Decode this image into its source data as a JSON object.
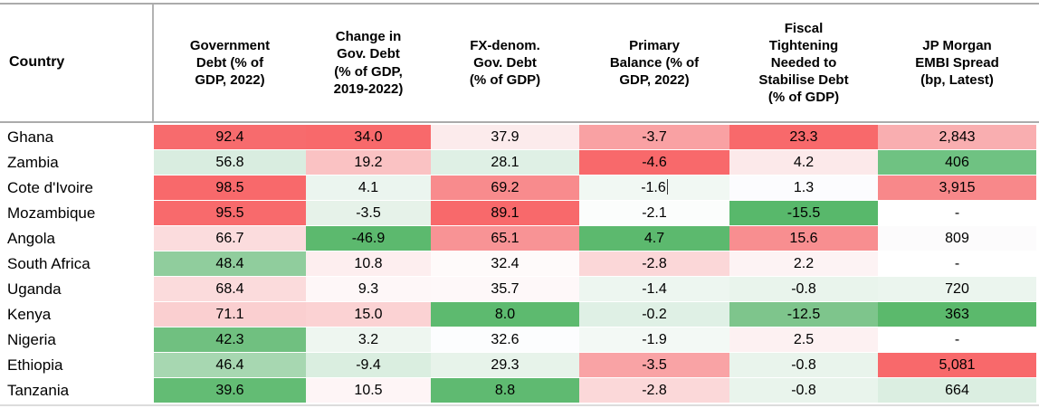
{
  "table": {
    "country_header": "Country",
    "columns": [
      "Government\nDebt (% of\nGDP, 2022)",
      "Change in\nGov. Debt\n(% of GDP,\n2019-2022)",
      "FX-denom.\nGov. Debt\n(% of GDP)",
      "Primary\nBalance (% of\nGDP, 2022)",
      "Fiscal\nTightening\nNeeded to\nStabilise Debt\n(% of GDP)",
      "JP Morgan\nEMBI Spread\n(bp, Latest)"
    ],
    "rows": [
      {
        "country": "Ghana",
        "cells": [
          {
            "v": "92.4",
            "bg": "#F76B6D"
          },
          {
            "v": "34.0",
            "bg": "#F8696B"
          },
          {
            "v": "37.9",
            "bg": "#FCEBEC"
          },
          {
            "v": "-3.7",
            "bg": "#F9A1A3"
          },
          {
            "v": "23.3",
            "bg": "#F8696B"
          },
          {
            "v": "2,843",
            "bg": "#F9AEB0"
          }
        ]
      },
      {
        "country": "Zambia",
        "cells": [
          {
            "v": "56.8",
            "bg": "#D9EDE0"
          },
          {
            "v": "19.2",
            "bg": "#FAC2C3"
          },
          {
            "v": "28.1",
            "bg": "#DFF0E5"
          },
          {
            "v": "-4.6",
            "bg": "#F8696B"
          },
          {
            "v": "4.2",
            "bg": "#FCE9EA"
          },
          {
            "v": "406",
            "bg": "#6FC282"
          }
        ]
      },
      {
        "country": "Cote d'Ivoire",
        "cells": [
          {
            "v": "98.5",
            "bg": "#F8696B"
          },
          {
            "v": "4.1",
            "bg": "#EBF5EF"
          },
          {
            "v": "69.2",
            "bg": "#F88B8D"
          },
          {
            "v": "-1.6",
            "bg": "#F1F8F3",
            "cursor": true
          },
          {
            "v": "1.3",
            "bg": "#FCFCFE"
          },
          {
            "v": "3,915",
            "bg": "#F8888A"
          }
        ]
      },
      {
        "country": "Mozambique",
        "cells": [
          {
            "v": "95.5",
            "bg": "#F86A6C"
          },
          {
            "v": "-3.5",
            "bg": "#E6F2E9"
          },
          {
            "v": "89.1",
            "bg": "#F8696B"
          },
          {
            "v": "-2.1",
            "bg": "#FBFDFC"
          },
          {
            "v": "-15.5",
            "bg": "#58B86B"
          },
          {
            "v": "-",
            "bg": "#FFFFFF"
          }
        ]
      },
      {
        "country": "Angola",
        "cells": [
          {
            "v": "66.7",
            "bg": "#FBDCDD"
          },
          {
            "v": "-46.9",
            "bg": "#5CB96E"
          },
          {
            "v": "65.1",
            "bg": "#F89395"
          },
          {
            "v": "4.7",
            "bg": "#5CB96E"
          },
          {
            "v": "15.6",
            "bg": "#F88E90"
          },
          {
            "v": "809",
            "bg": "#FCFBFC"
          }
        ]
      },
      {
        "country": "South Africa",
        "cells": [
          {
            "v": "48.4",
            "bg": "#90CD9D"
          },
          {
            "v": "10.8",
            "bg": "#FDEEEF"
          },
          {
            "v": "32.4",
            "bg": "#FEFAFA"
          },
          {
            "v": "-2.8",
            "bg": "#FBD7D8"
          },
          {
            "v": "2.2",
            "bg": "#FDF3F4"
          },
          {
            "v": "-",
            "bg": "#FFFFFF"
          }
        ]
      },
      {
        "country": "Uganda",
        "cells": [
          {
            "v": "68.4",
            "bg": "#FBDBDC"
          },
          {
            "v": "9.3",
            "bg": "#FEF7F8"
          },
          {
            "v": "35.7",
            "bg": "#FEF8F9"
          },
          {
            "v": "-1.4",
            "bg": "#EDF6F0"
          },
          {
            "v": "-0.8",
            "bg": "#E9F4EC"
          },
          {
            "v": "720",
            "bg": "#EBF5EE"
          }
        ]
      },
      {
        "country": "Kenya",
        "cells": [
          {
            "v": "71.1",
            "bg": "#FACFD0"
          },
          {
            "v": "15.0",
            "bg": "#FBD2D3"
          },
          {
            "v": "8.0",
            "bg": "#5DBA6F"
          },
          {
            "v": "-0.2",
            "bg": "#DFF0E5"
          },
          {
            "v": "-12.5",
            "bg": "#7EC58C"
          },
          {
            "v": "363",
            "bg": "#5BB96C"
          }
        ]
      },
      {
        "country": "Nigeria",
        "cells": [
          {
            "v": "42.3",
            "bg": "#70C080"
          },
          {
            "v": "3.2",
            "bg": "#EEF6F0"
          },
          {
            "v": "32.6",
            "bg": "#FCFDFE"
          },
          {
            "v": "-1.9",
            "bg": "#F3F9F5"
          },
          {
            "v": "2.5",
            "bg": "#FDF1F2"
          },
          {
            "v": "-",
            "bg": "#FFFFFF"
          }
        ]
      },
      {
        "country": "Ethiopia",
        "cells": [
          {
            "v": "46.4",
            "bg": "#A7D7B1"
          },
          {
            "v": "-9.4",
            "bg": "#DAEEE0"
          },
          {
            "v": "29.3",
            "bg": "#E7F3EA"
          },
          {
            "v": "-3.5",
            "bg": "#F9A3A5"
          },
          {
            "v": "-0.8",
            "bg": "#E9F4EC"
          },
          {
            "v": "5,081",
            "bg": "#F8696B"
          }
        ]
      },
      {
        "country": "Tanzania",
        "cells": [
          {
            "v": "39.6",
            "bg": "#63BC74"
          },
          {
            "v": "10.5",
            "bg": "#FEF5F6"
          },
          {
            "v": "8.8",
            "bg": "#5FBA71"
          },
          {
            "v": "-2.8",
            "bg": "#FBD8D9"
          },
          {
            "v": "-0.8",
            "bg": "#E9F4EC"
          },
          {
            "v": "664",
            "bg": "#DBEEE1"
          }
        ]
      }
    ]
  },
  "colors": {
    "heat_red": "#F8696B",
    "heat_mid": "#FCFCFF",
    "heat_green": "#63BE7B",
    "border_dark": "#ABABAB",
    "border_light": "#DCDCDC",
    "text": "#000000"
  },
  "chart_data": {
    "type": "table",
    "title": "",
    "row_label_header": "Country",
    "columns": [
      "Government Debt (% of GDP, 2022)",
      "Change in Gov. Debt (% of GDP, 2019-2022)",
      "FX-denom. Gov. Debt (% of GDP)",
      "Primary Balance (% of GDP, 2022)",
      "Fiscal Tightening Needed to Stabilise Debt (% of GDP)",
      "JP Morgan EMBI Spread (bp, Latest)"
    ],
    "rows": [
      "Ghana",
      "Zambia",
      "Cote d'Ivoire",
      "Mozambique",
      "Angola",
      "South Africa",
      "Uganda",
      "Kenya",
      "Nigeria",
      "Ethiopia",
      "Tanzania"
    ],
    "values": [
      [
        92.4,
        34.0,
        37.9,
        -3.7,
        23.3,
        2843
      ],
      [
        56.8,
        19.2,
        28.1,
        -4.6,
        4.2,
        406
      ],
      [
        98.5,
        4.1,
        69.2,
        -1.6,
        1.3,
        3915
      ],
      [
        95.5,
        -3.5,
        89.1,
        -2.1,
        -15.5,
        null
      ],
      [
        66.7,
        -46.9,
        65.1,
        4.7,
        15.6,
        809
      ],
      [
        48.4,
        10.8,
        32.4,
        -2.8,
        2.2,
        null
      ],
      [
        68.4,
        9.3,
        35.7,
        -1.4,
        -0.8,
        720
      ],
      [
        71.1,
        15.0,
        8.0,
        -0.2,
        -12.5,
        363
      ],
      [
        42.3,
        3.2,
        32.6,
        -1.9,
        2.5,
        null
      ],
      [
        46.4,
        -9.4,
        29.3,
        -3.5,
        -0.8,
        5081
      ],
      [
        39.6,
        10.5,
        8.8,
        -2.8,
        -0.8,
        664
      ]
    ],
    "missing_value_display": "-",
    "conditional_formatting": "per-column red-white-green heatmap (red #F8696B = worst, white #FCFCFF = middle, green #63BE7B = best)"
  }
}
